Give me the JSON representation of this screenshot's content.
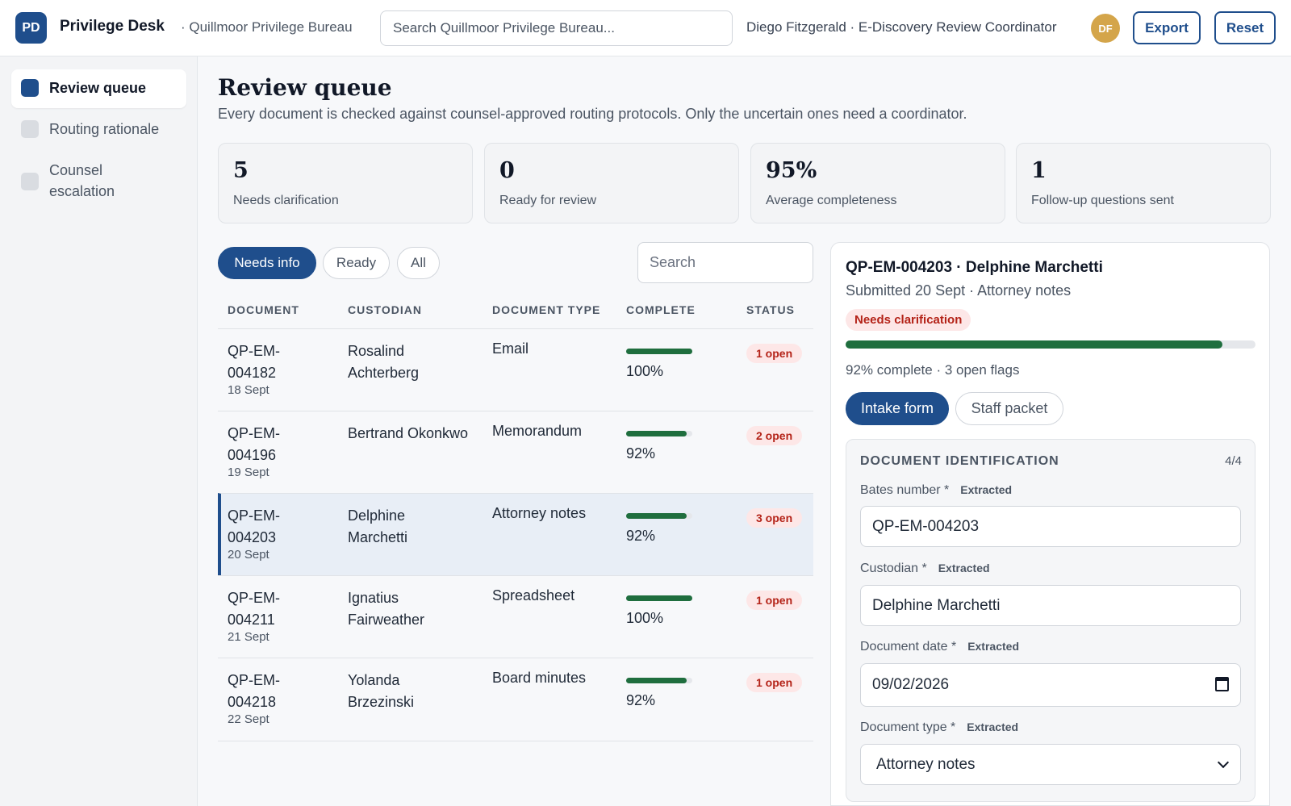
{
  "header": {
    "logo_initials": "PD",
    "app_name": "Privilege Desk",
    "org_name": "· Quillmoor Privilege Bureau",
    "search_placeholder": "Search Quillmoor Privilege Bureau...",
    "user_line": "Diego Fitzgerald · E-Discovery Review Coordinator",
    "avatar_initials": "DF",
    "export_label": "Export",
    "reset_label": "Reset"
  },
  "sidebar": {
    "items": [
      {
        "label": "Review queue",
        "active": true
      },
      {
        "label": "Routing rationale",
        "active": false
      },
      {
        "label": "Counsel escalation",
        "active": false
      }
    ]
  },
  "main": {
    "title": "Review queue",
    "subtitle": "Every document is checked against counsel-approved routing protocols. Only the uncertain ones need a coordinator.",
    "stats": [
      {
        "value": "5",
        "label": "Needs clarification"
      },
      {
        "value": "0",
        "label": "Ready for review"
      },
      {
        "value": "95%",
        "label": "Average completeness"
      },
      {
        "value": "1",
        "label": "Follow-up questions sent"
      }
    ],
    "filters": {
      "chips": [
        "Needs info",
        "Ready",
        "All"
      ],
      "active_chip": "Needs info",
      "search_placeholder": "Search"
    },
    "table": {
      "columns": [
        "DOCUMENT",
        "CUSTODIAN",
        "DOCUMENT TYPE",
        "COMPLETE",
        "STATUS"
      ],
      "rows": [
        {
          "doc": "QP-EM-004182",
          "date": "18 Sept",
          "custodian": "Rosalind Achterberg",
          "type": "Email",
          "complete": 100,
          "complete_label": "100%",
          "status": "1 open",
          "selected": false
        },
        {
          "doc": "QP-EM-004196",
          "date": "19 Sept",
          "custodian": "Bertrand Okonkwo",
          "type": "Memorandum",
          "complete": 92,
          "complete_label": "92%",
          "status": "2 open",
          "selected": false
        },
        {
          "doc": "QP-EM-004203",
          "date": "20 Sept",
          "custodian": "Delphine Marchetti",
          "type": "Attorney notes",
          "complete": 92,
          "complete_label": "92%",
          "status": "3 open",
          "selected": true
        },
        {
          "doc": "QP-EM-004211",
          "date": "21 Sept",
          "custodian": "Ignatius Fairweather",
          "type": "Spreadsheet",
          "complete": 100,
          "complete_label": "100%",
          "status": "1 open",
          "selected": false
        },
        {
          "doc": "QP-EM-004218",
          "date": "22 Sept",
          "custodian": "Yolanda Brzezinski",
          "type": "Board minutes",
          "complete": 92,
          "complete_label": "92%",
          "status": "1 open",
          "selected": false
        }
      ]
    }
  },
  "detail": {
    "title": "QP-EM-004203 · Delphine Marchetti",
    "subtitle": "Submitted 20 Sept · Attorney notes",
    "status_badge": "Needs clarification",
    "progress": 92,
    "progress_text": "92% complete · 3 open flags",
    "tabs": [
      "Intake form",
      "Staff packet"
    ],
    "active_tab": "Intake form",
    "section": {
      "title": "DOCUMENT IDENTIFICATION",
      "count": "4/4",
      "fields": [
        {
          "label": "Bates number *",
          "tag": "Extracted",
          "value": "QP-EM-004203"
        },
        {
          "label": "Custodian *",
          "tag": "Extracted",
          "value": "Delphine Marchetti"
        },
        {
          "label": "Document date *",
          "tag": "Extracted",
          "value": "09/02/2026"
        },
        {
          "label": "Document type *",
          "tag": "Extracted",
          "value": "Attorney notes"
        }
      ]
    }
  },
  "colors": {
    "brand": "#1f4e8c",
    "progress": "#1f6e3e",
    "badge_bg": "#fde7e7",
    "badge_text": "#b42318",
    "avatar": "#d4a54a"
  },
  "icons": {
    "calendar": "calendar-icon",
    "chevron": "chevron-down-icon"
  }
}
